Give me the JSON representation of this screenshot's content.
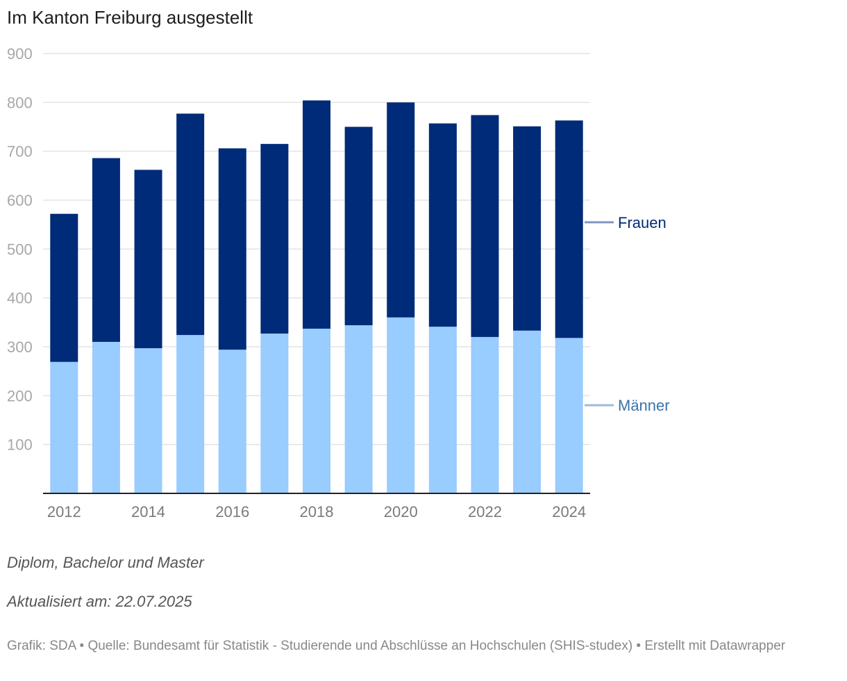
{
  "title": "Im Kanton Freiburg ausgestellt",
  "chart_data": {
    "type": "bar",
    "stacked": true,
    "title": "Im Kanton Freiburg ausgestellt",
    "categories": [
      "2012",
      "2013",
      "2014",
      "2015",
      "2016",
      "2017",
      "2018",
      "2019",
      "2020",
      "2021",
      "2022",
      "2023",
      "2024"
    ],
    "x_tick_labels": [
      "2012",
      "2014",
      "2016",
      "2018",
      "2020",
      "2022",
      "2024"
    ],
    "series": [
      {
        "name": "Männer",
        "color": "#99ccff",
        "label_color": "#3b74a8",
        "values": [
          269,
          310,
          297,
          324,
          294,
          327,
          337,
          344,
          360,
          341,
          320,
          333,
          318
        ]
      },
      {
        "name": "Frauen",
        "color": "#002b78",
        "label_color": "#002b78",
        "values": [
          303,
          376,
          365,
          453,
          412,
          388,
          467,
          406,
          440,
          416,
          454,
          418,
          445
        ]
      }
    ],
    "ylim": [
      0,
      900
    ],
    "yticks": [
      "100",
      "200",
      "300",
      "400",
      "500",
      "600",
      "700",
      "800",
      "900"
    ],
    "xlabel": "",
    "ylabel": "",
    "grid": true,
    "legend": "right, inline labels"
  },
  "notes": {
    "subtitle": "Diplom, Bachelor und Master",
    "updated": "Aktualisiert am: 22.07.2025"
  },
  "footer": "Grafik: SDA • Quelle: Bundesamt für Statistik - Studierende und Abschlüsse an Hochschulen (SHIS-studex) • Erstellt mit Datawrapper"
}
